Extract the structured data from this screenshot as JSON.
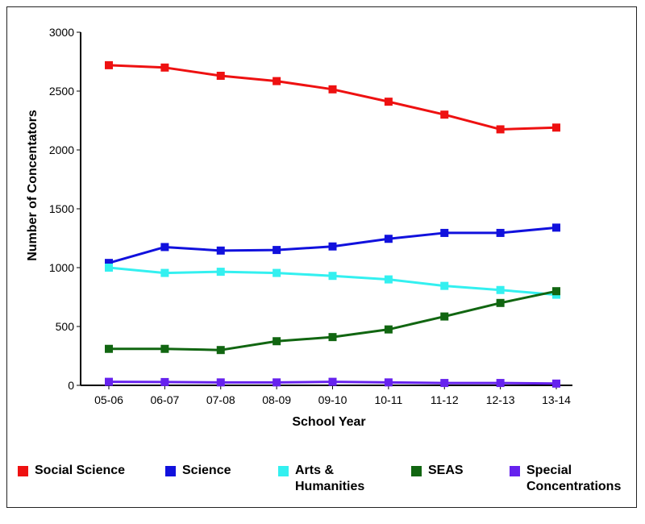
{
  "chart_data": {
    "type": "line",
    "title": "",
    "xlabel": "School Year",
    "ylabel": "Number of Concentators",
    "categories": [
      "05-06",
      "06-07",
      "07-08",
      "08-09",
      "09-10",
      "10-11",
      "11-12",
      "12-13",
      "13-14"
    ],
    "ylim": [
      0,
      3000
    ],
    "yticks": [
      0,
      500,
      1000,
      1500,
      2000,
      2500,
      3000
    ],
    "grid": false,
    "legend_position": "bottom",
    "series": [
      {
        "name": "Social Science",
        "color": "#ee1111",
        "values": [
          2720,
          2700,
          2630,
          2585,
          2515,
          2410,
          2300,
          2175,
          2190
        ]
      },
      {
        "name": "Science",
        "color": "#1111dd",
        "values": [
          1040,
          1175,
          1145,
          1150,
          1180,
          1245,
          1295,
          1295,
          1340
        ]
      },
      {
        "name": "Arts & Humanities",
        "color": "#33f0f0",
        "values": [
          1000,
          955,
          965,
          955,
          930,
          900,
          845,
          810,
          770
        ]
      },
      {
        "name": "SEAS",
        "color": "#116611",
        "values": [
          310,
          310,
          300,
          375,
          410,
          475,
          585,
          700,
          800
        ]
      },
      {
        "name": "Special Concentrations",
        "color": "#6622ee",
        "values": [
          30,
          28,
          25,
          25,
          30,
          25,
          20,
          20,
          15
        ]
      }
    ]
  },
  "legend": {
    "items": [
      {
        "label_lines": [
          "Social Science"
        ]
      },
      {
        "label_lines": [
          "Science"
        ]
      },
      {
        "label_lines": [
          "Arts &",
          "Humanities"
        ]
      },
      {
        "label_lines": [
          "SEAS"
        ]
      },
      {
        "label_lines": [
          "Special",
          "Concentrations"
        ]
      }
    ]
  }
}
